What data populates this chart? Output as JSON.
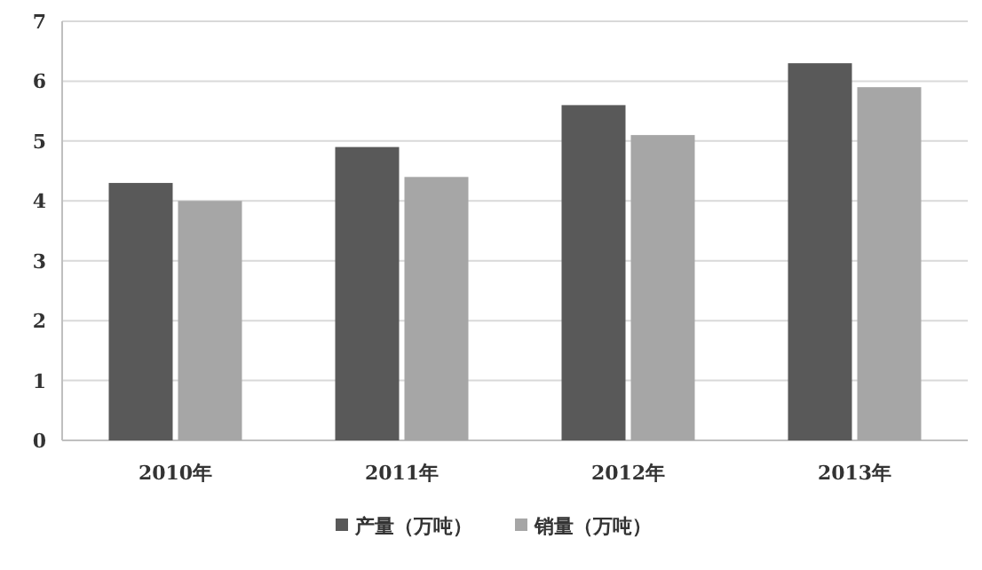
{
  "chart_data": {
    "type": "bar",
    "categories": [
      "2010年",
      "2011年",
      "2012年",
      "2013年"
    ],
    "series": [
      {
        "name": "产量（万吨）",
        "color": "#595959",
        "values": [
          4.3,
          4.9,
          5.6,
          6.3
        ]
      },
      {
        "name": "销量（万吨）",
        "color": "#a6a6a6",
        "values": [
          4.0,
          4.4,
          5.1,
          5.9
        ]
      }
    ],
    "ylim": [
      0,
      7
    ],
    "yticks": [
      0,
      1,
      2,
      3,
      4,
      5,
      6,
      7
    ],
    "grid": "y",
    "legend": "bottom"
  }
}
